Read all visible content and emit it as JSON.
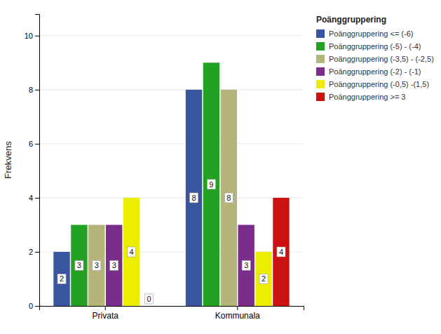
{
  "chart_data": {
    "type": "bar",
    "categories": [
      "Privata",
      "Kommunala"
    ],
    "series": [
      {
        "name": "Poänggruppering <= (-6)",
        "color": "#3A55A0",
        "values": [
          2,
          8
        ]
      },
      {
        "name": "Poänggruppering (-5) - (-4)",
        "color": "#22A122",
        "values": [
          3,
          9
        ]
      },
      {
        "name": "Poänggruppering (-3,5) - (-2,5)",
        "color": "#B5B47A",
        "values": [
          3,
          8
        ]
      },
      {
        "name": "Poänggruppering (-2) - (-1)",
        "color": "#7B2D8B",
        "values": [
          3,
          3
        ]
      },
      {
        "name": "Poänggruppering (-0,5) -(1,5)",
        "color": "#EDED00",
        "values": [
          4,
          2
        ]
      },
      {
        "name": "Poänggruppering >= 3",
        "color": "#CC1111",
        "values": [
          0,
          4
        ]
      }
    ],
    "ylabel": "Frekvens",
    "legend_title": "Poänggruppering",
    "ylim": [
      0,
      10.8
    ],
    "yticks": [
      0,
      2,
      4,
      6,
      8,
      10
    ],
    "grid": true,
    "legend": "right",
    "data_labels": true
  }
}
